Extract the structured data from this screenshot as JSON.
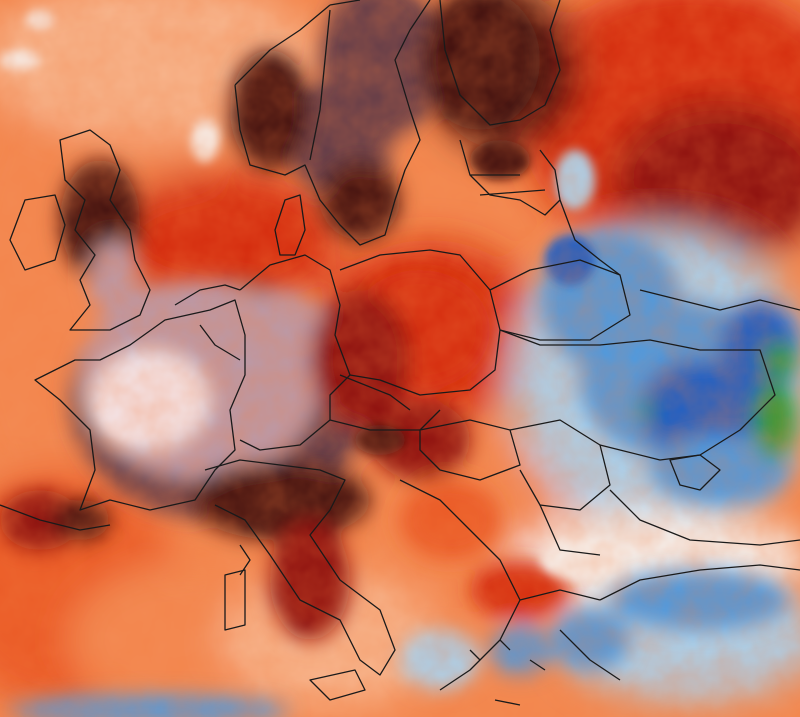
{
  "map": {
    "type": "temperature-anomaly-heatmap",
    "region": "Europe",
    "labels_visible": false,
    "palette": {
      "extreme_hot_light": "#f3e8ee",
      "extreme_hot_mid": "#b99aaa",
      "extreme_hot_dark": "#5e3a48",
      "very_hot": "#3a0a0c",
      "hot_dark_red": "#8a0f08",
      "hot_red": "#d42a10",
      "warm_orange_red": "#ea5a25",
      "warm_orange": "#f38a52",
      "mild_peach": "#f7b68e",
      "neutral_white": "#f6f4f2",
      "cool_light_blue": "#a9d4f2",
      "cool_blue": "#4d9ae0",
      "cold_blue": "#1f5fc6",
      "cold_green": "#2a9a35",
      "border_line": "#1a1a1a"
    },
    "anomaly_zones": [
      {
        "name": "france-extreme-heat",
        "color": "extreme_hot_mid"
      },
      {
        "name": "scandinavia-extreme-heat",
        "color": "extreme_hot_dark"
      },
      {
        "name": "poland-heat",
        "color": "hot_red"
      },
      {
        "name": "ukraine-russia-cold",
        "color": "cool_blue"
      },
      {
        "name": "turkey-cold",
        "color": "cool_blue"
      }
    ]
  }
}
